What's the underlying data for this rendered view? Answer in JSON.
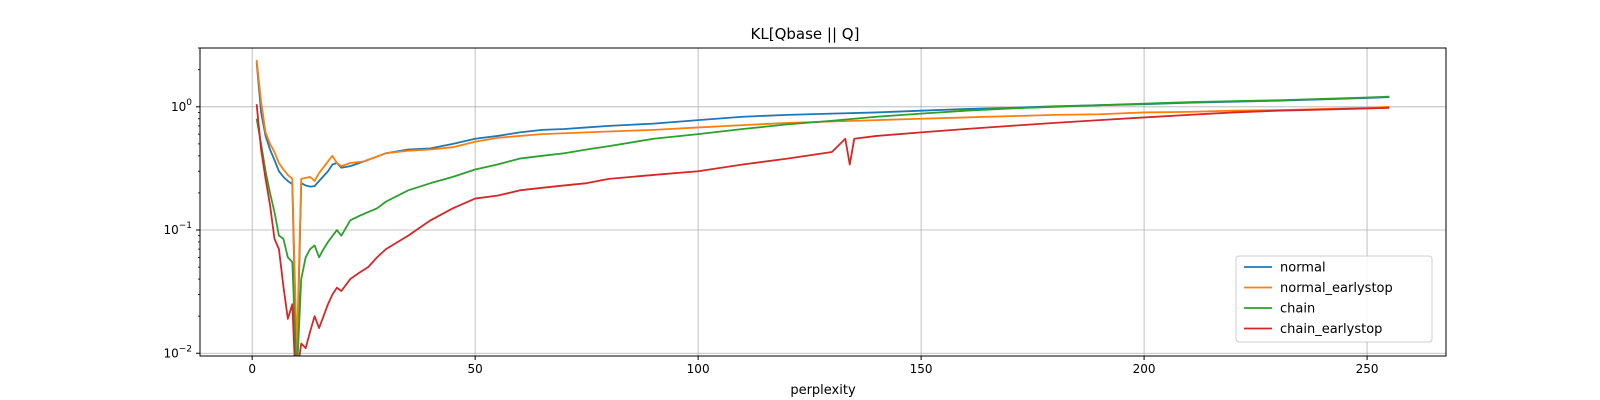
{
  "chart_data": {
    "type": "line",
    "title": "KL[Qbase || Q]",
    "xlabel": "perplexity",
    "ylabel": "",
    "xscale": "linear",
    "yscale": "log",
    "xlim": [
      -11.7,
      267.7
    ],
    "ylim": [
      0.0095,
      3.0
    ],
    "x_ticks": [
      {
        "value": 0,
        "label": "0"
      },
      {
        "value": 50,
        "label": "50"
      },
      {
        "value": 100,
        "label": "100"
      },
      {
        "value": 150,
        "label": "150"
      },
      {
        "value": 200,
        "label": "200"
      },
      {
        "value": 250,
        "label": "250"
      }
    ],
    "y_ticks": [
      {
        "value": 0.01,
        "base": "10",
        "exp": "−2"
      },
      {
        "value": 0.1,
        "base": "10",
        "exp": "−1"
      },
      {
        "value": 1,
        "base": "10",
        "exp": "0"
      }
    ],
    "grid": true,
    "legend_position": "lower-right",
    "series": [
      {
        "name": "normal",
        "color": "#1f77b4",
        "points": [
          [
            1,
            2.3
          ],
          [
            2,
            0.9
          ],
          [
            3,
            0.58
          ],
          [
            4,
            0.45
          ],
          [
            5,
            0.37
          ],
          [
            6,
            0.3
          ],
          [
            7,
            0.27
          ],
          [
            8,
            0.25
          ],
          [
            9,
            0.235
          ],
          [
            10,
            null
          ],
          [
            11,
            0.24
          ],
          [
            12,
            0.23
          ],
          [
            13,
            0.225
          ],
          [
            14,
            0.227
          ],
          [
            15,
            0.25
          ],
          [
            17,
            0.3
          ],
          [
            18,
            0.34
          ],
          [
            19,
            0.35
          ],
          [
            20,
            0.32
          ],
          [
            22,
            0.33
          ],
          [
            25,
            0.36
          ],
          [
            30,
            0.42
          ],
          [
            35,
            0.45
          ],
          [
            40,
            0.46
          ],
          [
            45,
            0.5
          ],
          [
            50,
            0.55
          ],
          [
            55,
            0.58
          ],
          [
            60,
            0.62
          ],
          [
            65,
            0.65
          ],
          [
            70,
            0.66
          ],
          [
            75,
            0.68
          ],
          [
            80,
            0.7
          ],
          [
            90,
            0.73
          ],
          [
            100,
            0.78
          ],
          [
            110,
            0.83
          ],
          [
            120,
            0.86
          ],
          [
            130,
            0.88
          ],
          [
            140,
            0.9
          ],
          [
            150,
            0.93
          ],
          [
            160,
            0.96
          ],
          [
            170,
            0.98
          ],
          [
            180,
            1.01
          ],
          [
            190,
            1.03
          ],
          [
            200,
            1.05
          ],
          [
            210,
            1.08
          ],
          [
            220,
            1.1
          ],
          [
            230,
            1.12
          ],
          [
            240,
            1.15
          ],
          [
            250,
            1.18
          ],
          [
            255,
            1.2
          ]
        ]
      },
      {
        "name": "normal_earlystop",
        "color": "#ff7f0e",
        "points": [
          [
            1,
            2.4
          ],
          [
            2,
            1.1
          ],
          [
            3,
            0.62
          ],
          [
            4,
            0.5
          ],
          [
            5,
            0.43
          ],
          [
            6,
            0.35
          ],
          [
            7,
            0.31
          ],
          [
            8,
            0.28
          ],
          [
            9,
            0.26
          ],
          [
            10,
            0.01
          ],
          [
            11,
            0.26
          ],
          [
            12,
            0.265
          ],
          [
            13,
            0.27
          ],
          [
            14,
            0.25
          ],
          [
            15,
            0.29
          ],
          [
            17,
            0.36
          ],
          [
            18,
            0.4
          ],
          [
            19,
            0.35
          ],
          [
            20,
            0.33
          ],
          [
            22,
            0.35
          ],
          [
            25,
            0.36
          ],
          [
            30,
            0.42
          ],
          [
            35,
            0.44
          ],
          [
            40,
            0.45
          ],
          [
            45,
            0.47
          ],
          [
            50,
            0.52
          ],
          [
            55,
            0.56
          ],
          [
            60,
            0.58
          ],
          [
            65,
            0.6
          ],
          [
            70,
            0.61
          ],
          [
            75,
            0.62
          ],
          [
            80,
            0.63
          ],
          [
            90,
            0.65
          ],
          [
            100,
            0.68
          ],
          [
            110,
            0.71
          ],
          [
            120,
            0.74
          ],
          [
            130,
            0.76
          ],
          [
            140,
            0.78
          ],
          [
            150,
            0.8
          ],
          [
            160,
            0.82
          ],
          [
            170,
            0.84
          ],
          [
            180,
            0.86
          ],
          [
            190,
            0.87
          ],
          [
            200,
            0.9
          ],
          [
            210,
            0.91
          ],
          [
            220,
            0.93
          ],
          [
            230,
            0.94
          ],
          [
            240,
            0.96
          ],
          [
            250,
            0.98
          ],
          [
            255,
            1.0
          ]
        ]
      },
      {
        "name": "chain",
        "color": "#2ca02c",
        "points": [
          [
            1,
            0.8
          ],
          [
            2,
            0.5
          ],
          [
            3,
            0.3
          ],
          [
            4,
            0.2
          ],
          [
            5,
            0.14
          ],
          [
            6,
            0.09
          ],
          [
            7,
            0.085
          ],
          [
            8,
            0.06
          ],
          [
            9,
            0.055
          ],
          [
            10,
            null
          ],
          [
            11,
            0.04
          ],
          [
            12,
            0.06
          ],
          [
            13,
            0.07
          ],
          [
            14,
            0.075
          ],
          [
            15,
            0.06
          ],
          [
            16,
            0.07
          ],
          [
            17,
            0.08
          ],
          [
            19,
            0.1
          ],
          [
            20,
            0.09
          ],
          [
            22,
            0.12
          ],
          [
            24,
            0.13
          ],
          [
            26,
            0.14
          ],
          [
            28,
            0.15
          ],
          [
            30,
            0.17
          ],
          [
            35,
            0.21
          ],
          [
            40,
            0.24
          ],
          [
            45,
            0.27
          ],
          [
            50,
            0.31
          ],
          [
            55,
            0.34
          ],
          [
            60,
            0.38
          ],
          [
            65,
            0.4
          ],
          [
            70,
            0.42
          ],
          [
            75,
            0.45
          ],
          [
            80,
            0.48
          ],
          [
            90,
            0.55
          ],
          [
            100,
            0.6
          ],
          [
            110,
            0.66
          ],
          [
            120,
            0.72
          ],
          [
            130,
            0.77
          ],
          [
            140,
            0.83
          ],
          [
            150,
            0.88
          ],
          [
            160,
            0.93
          ],
          [
            170,
            0.97
          ],
          [
            180,
            1.0
          ],
          [
            190,
            1.03
          ],
          [
            200,
            1.06
          ],
          [
            210,
            1.09
          ],
          [
            220,
            1.11
          ],
          [
            230,
            1.13
          ],
          [
            240,
            1.16
          ],
          [
            250,
            1.19
          ],
          [
            255,
            1.21
          ]
        ]
      },
      {
        "name": "chain_earlystop",
        "color": "#d62728",
        "points": [
          [
            1,
            1.05
          ],
          [
            2,
            0.45
          ],
          [
            3,
            0.26
          ],
          [
            4,
            0.16
          ],
          [
            5,
            0.085
          ],
          [
            6,
            0.07
          ],
          [
            7,
            0.035
          ],
          [
            8,
            0.019
          ],
          [
            9,
            0.025
          ],
          [
            9.5,
            0.0095
          ],
          [
            10,
            null
          ],
          [
            11,
            0.012
          ],
          [
            12,
            0.011
          ],
          [
            13,
            0.015
          ],
          [
            14,
            0.02
          ],
          [
            15,
            0.016
          ],
          [
            16,
            0.02
          ],
          [
            17,
            0.025
          ],
          [
            18,
            0.03
          ],
          [
            19,
            0.034
          ],
          [
            20,
            0.032
          ],
          [
            22,
            0.04
          ],
          [
            24,
            0.045
          ],
          [
            26,
            0.05
          ],
          [
            28,
            0.06
          ],
          [
            30,
            0.07
          ],
          [
            35,
            0.09
          ],
          [
            40,
            0.12
          ],
          [
            45,
            0.15
          ],
          [
            50,
            0.18
          ],
          [
            55,
            0.19
          ],
          [
            60,
            0.21
          ],
          [
            65,
            0.22
          ],
          [
            70,
            0.23
          ],
          [
            75,
            0.24
          ],
          [
            80,
            0.26
          ],
          [
            90,
            0.28
          ],
          [
            100,
            0.3
          ],
          [
            110,
            0.34
          ],
          [
            120,
            0.38
          ],
          [
            130,
            0.43
          ],
          [
            133,
            0.55
          ],
          [
            134,
            0.34
          ],
          [
            135,
            0.55
          ],
          [
            140,
            0.58
          ],
          [
            150,
            0.62
          ],
          [
            160,
            0.66
          ],
          [
            170,
            0.7
          ],
          [
            180,
            0.74
          ],
          [
            190,
            0.78
          ],
          [
            200,
            0.82
          ],
          [
            210,
            0.86
          ],
          [
            220,
            0.9
          ],
          [
            230,
            0.93
          ],
          [
            240,
            0.95
          ],
          [
            250,
            0.97
          ],
          [
            255,
            0.98
          ]
        ]
      }
    ]
  }
}
